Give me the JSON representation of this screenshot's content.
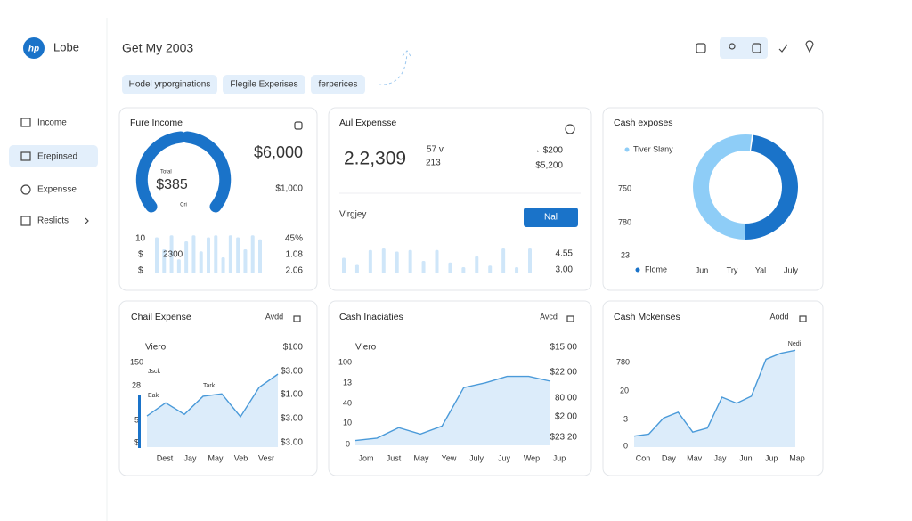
{
  "sidebar": {
    "logo": "hp",
    "brand": "Lobe",
    "nav": [
      "Income",
      "Erepinsed",
      "Expensse",
      "Reslicts"
    ]
  },
  "header": {
    "title": "Get My 2003",
    "chips": [
      "Hodel yrporginations",
      "Flegile Experises",
      "ferperices"
    ]
  },
  "cards": [
    {
      "title": "Fure Income",
      "gauge": {
        "caption": "Total",
        "value_text": "$385",
        "sub": "Cri"
      },
      "amount": "$6,000",
      "sub_amount": "$1,000",
      "left_labels": [
        "10",
        "$",
        "$"
      ],
      "mid_label": "2300",
      "right_labels": [
        "45%",
        "1.08",
        "2.06"
      ],
      "bars": [
        90,
        60,
        95,
        35,
        80,
        95,
        55,
        90,
        95,
        40,
        95,
        90,
        60,
        95,
        85
      ],
      "ylim": [
        0,
        100
      ]
    },
    {
      "title": "Aul Expensse",
      "amount": "2.2,309",
      "stats": [
        "57 v",
        "213"
      ],
      "side": [
        "→ $200",
        "$5,200"
      ],
      "subtitle": "Virgjey",
      "button": "Nal",
      "bars": [
        50,
        30,
        75,
        80,
        70,
        75,
        40,
        75,
        35,
        20,
        55,
        25,
        80,
        20,
        80
      ],
      "right_labels": [
        "4.55",
        "3.00"
      ],
      "ylim": [
        0,
        100
      ]
    },
    {
      "title": "Cash exposes",
      "legend": [
        "Tiver Slany",
        "Flome"
      ],
      "y_labels": [
        "750",
        "780",
        "23"
      ],
      "x_labels": [
        "Jun",
        "Try",
        "Yal",
        "July"
      ],
      "values": [
        48,
        52
      ]
    },
    {
      "title": "Chail Expense",
      "action": "Avdd",
      "series_label": "Viero",
      "top_value": "$100",
      "y_labels": [
        "150",
        "28",
        "5",
        "$"
      ],
      "notes": [
        "Jsck",
        "Tark",
        "Eak"
      ],
      "right_labels": [
        "$3.00",
        "$1.00",
        "$3.00",
        "$3.00"
      ],
      "x_labels": [
        "Dest",
        "Jay",
        "May",
        "Veb",
        "Vesr"
      ],
      "values": [
        38,
        54,
        40,
        62,
        65,
        37,
        73,
        89
      ],
      "ylim": [
        0,
        100
      ]
    },
    {
      "title": "Cash Inaciaties",
      "action": "Avcd",
      "series_label": "Viero",
      "top_value": "$15.00",
      "y_labels": [
        "100",
        "13",
        "40",
        "10",
        "0"
      ],
      "right_labels": [
        "$22.00",
        "80.00",
        "$2.00",
        "$23.20"
      ],
      "x_labels": [
        "Jom",
        "Just",
        "May",
        "Yew",
        "July",
        "Juy",
        "Wep",
        "Jup"
      ],
      "values": [
        6,
        9,
        22,
        14,
        24,
        72,
        78,
        86,
        86,
        80
      ],
      "ylim": [
        0,
        100
      ]
    },
    {
      "title": "Cash Mckenses",
      "action": "Aodd",
      "note": "Nedi",
      "y_labels": [
        "780",
        "20",
        "3",
        "0"
      ],
      "x_labels": [
        "Con",
        "Day",
        "Mav",
        "Jay",
        "Jun",
        "Jup",
        "Map"
      ],
      "values": [
        11,
        13,
        29,
        35,
        15,
        19,
        50,
        44,
        51,
        88,
        94,
        97
      ],
      "ylim": [
        0,
        100
      ]
    }
  ]
}
